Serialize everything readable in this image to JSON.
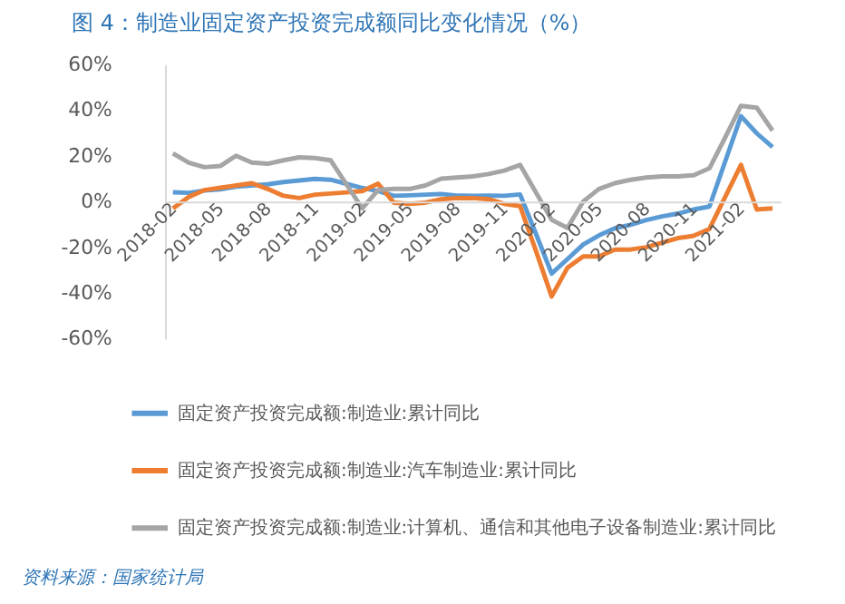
{
  "chart_data": {
    "type": "line",
    "title": "图 4：制造业固定资产投资完成额同比变化情况（%）",
    "categories": [
      "2018-02",
      null,
      null,
      "2018-05",
      null,
      null,
      "2018-08",
      null,
      null,
      "2018-11",
      null,
      null,
      "2019-02",
      null,
      null,
      "2019-05",
      null,
      null,
      "2019-08",
      null,
      null,
      "2019-11",
      null,
      null,
      "2020-02",
      null,
      null,
      "2020-05",
      null,
      null,
      "2020-08",
      null,
      null,
      "2020-11",
      null,
      null,
      "2021-02",
      null,
      null
    ],
    "series": [
      {
        "name": "固定资产投资完成额:制造业:累计同比",
        "color": "#5b9bd5",
        "values": [
          4,
          3.8,
          4.8,
          5.3,
          6.5,
          7,
          7.5,
          8.5,
          9.2,
          9.9,
          9.5,
          7.7,
          5.9,
          4.6,
          2.5,
          2.7,
          3,
          3.3,
          2.6,
          2.5,
          2.6,
          2.5,
          3.1,
          -14,
          -31.5,
          -25.2,
          -18.8,
          -14.8,
          -11.7,
          -10.2,
          -8.1,
          -6.5,
          -5.3,
          -3.5,
          -2.2,
          17.5,
          37.3,
          29.8,
          23.8
        ]
      },
      {
        "name": "固定资产投资完成额:制造业:汽车制造业:累计同比",
        "color": "#ed7d31",
        "values": [
          -3,
          2,
          5,
          6,
          7,
          8,
          5.5,
          2.5,
          1.5,
          3,
          3.5,
          4,
          4.5,
          7.8,
          -0.5,
          -1,
          -0.5,
          1,
          1.5,
          1.5,
          1,
          -1,
          -2,
          -21.5,
          -41.5,
          -29,
          -24,
          -24,
          -21,
          -21,
          -20,
          -18,
          -16,
          -15,
          -12,
          2,
          16,
          -3.5,
          -3
        ]
      },
      {
        "name": "固定资产投资完成额:制造业:计算机、通信和其他电子设备制造业:累计同比",
        "color": "#a5a5a5",
        "values": [
          21,
          17,
          15,
          15.5,
          20,
          17,
          16.5,
          18,
          19.3,
          19,
          18,
          7.5,
          -3,
          5,
          5.5,
          5.5,
          7,
          10,
          10.5,
          11,
          12,
          13.5,
          16,
          4,
          -8,
          -11.5,
          0,
          5.5,
          8,
          9.5,
          10.5,
          11,
          11,
          11.5,
          14.5,
          28,
          41.8,
          41,
          31
        ]
      }
    ],
    "ylim": [
      -60,
      60
    ],
    "yticks": [
      {
        "value": -60,
        "label": "-60%"
      },
      {
        "value": -40,
        "label": "-40%"
      },
      {
        "value": -20,
        "label": "-20%"
      },
      {
        "value": 0,
        "label": "0%"
      },
      {
        "value": 20,
        "label": "20%"
      },
      {
        "value": 40,
        "label": "40%"
      },
      {
        "value": 60,
        "label": "60%"
      }
    ],
    "legend": "bottom",
    "grid": false,
    "marker": "none",
    "line_style": "solid",
    "annotations": [
      "资料来源：国家统计局"
    ]
  }
}
